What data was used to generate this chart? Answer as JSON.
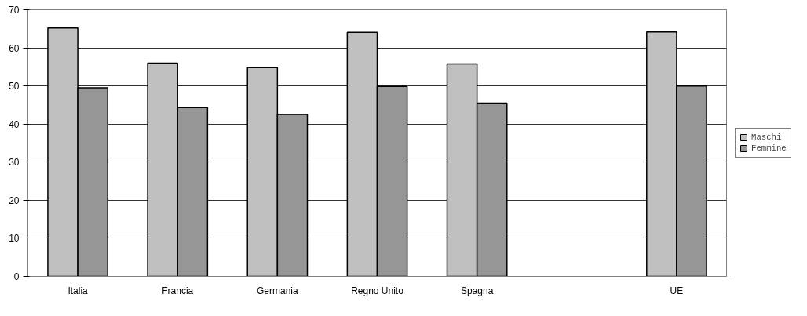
{
  "chart_data": {
    "type": "bar",
    "categories": [
      "Italia",
      "Francia",
      "Germania",
      "Regno Unito",
      "Spagna",
      null,
      "UE"
    ],
    "series": [
      {
        "name": "Maschi",
        "color": "#c0c0c0",
        "values": [
          65.2,
          56.0,
          54.8,
          64.1,
          55.8,
          null,
          64.2
        ]
      },
      {
        "name": "Femmine",
        "color": "#969696",
        "values": [
          49.5,
          44.3,
          42.5,
          49.9,
          45.5,
          null,
          50.0
        ]
      }
    ],
    "ylim": [
      0,
      70
    ],
    "yticks": [
      0,
      10,
      20,
      30,
      40,
      50,
      60,
      70
    ],
    "grid": "y",
    "legend": "right"
  }
}
